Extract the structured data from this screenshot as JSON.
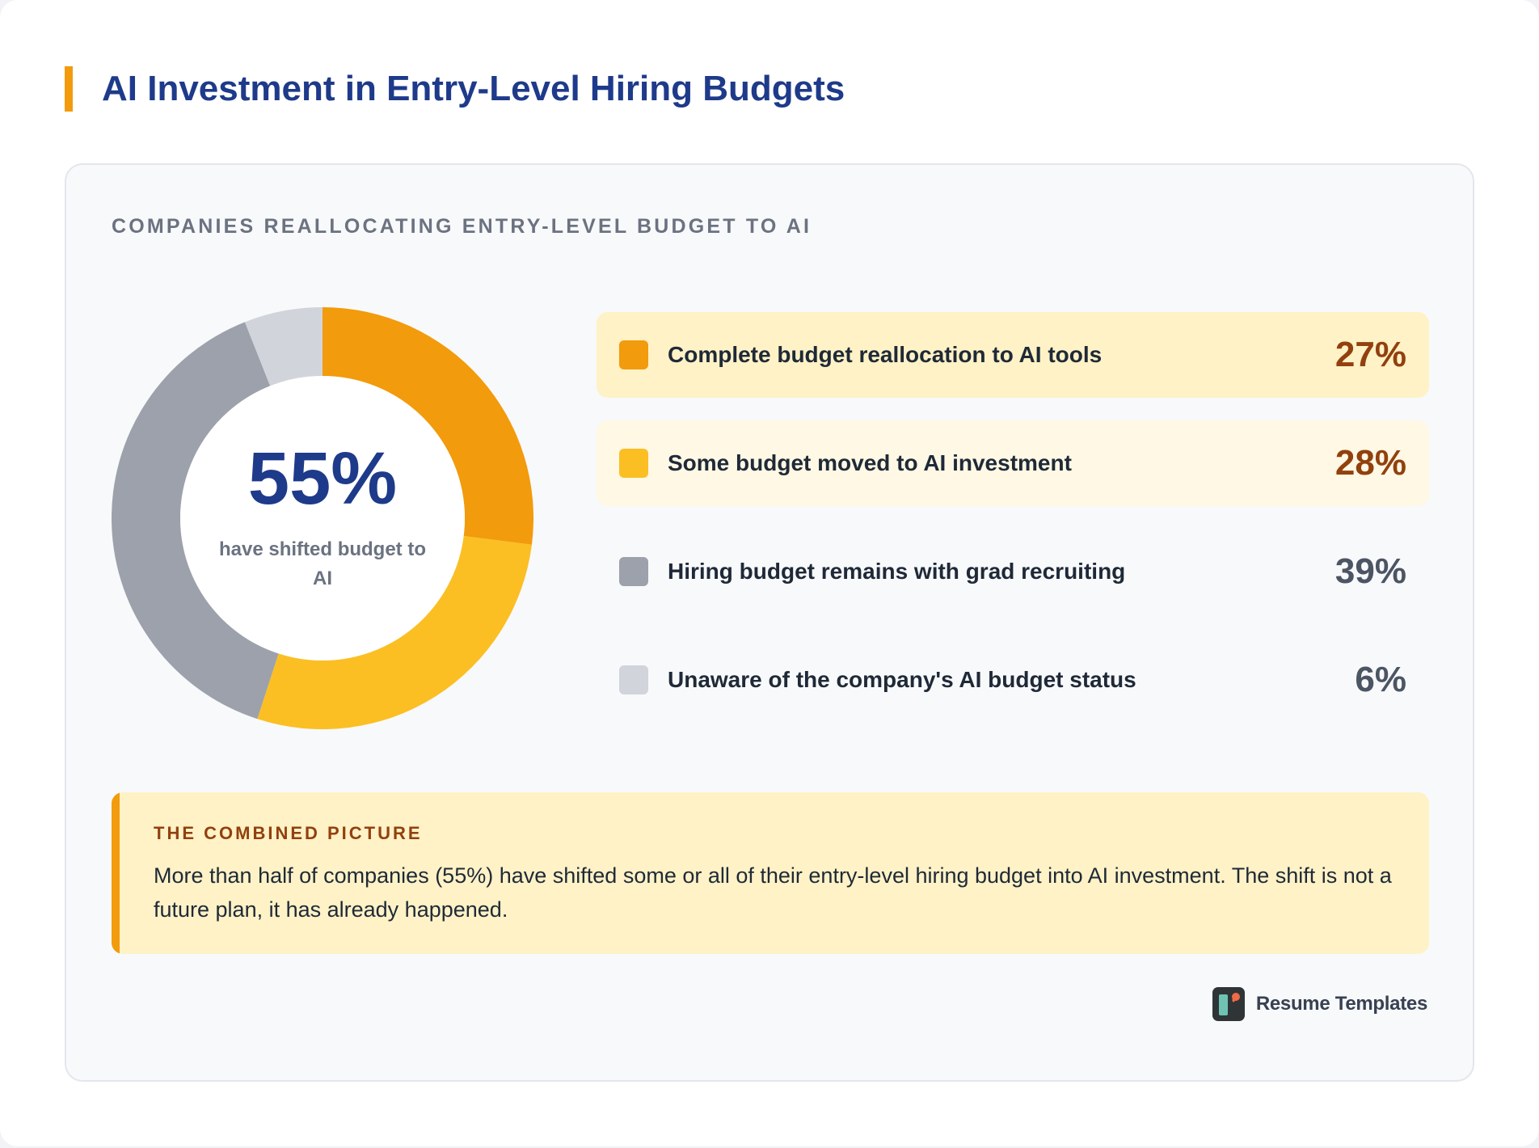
{
  "title": "AI Investment in Entry-Level Hiring Budgets",
  "section_label": "COMPANIES REALLOCATING ENTRY-LEVEL BUDGET TO AI",
  "donut": {
    "center_value": "55%",
    "center_caption": "have shifted budget to AI"
  },
  "legend": [
    {
      "label": "Complete budget reallocation to AI tools",
      "value_text": "27%",
      "color": "#f29b0c",
      "row_bg": "#fef2c6",
      "value_color": "#92400e"
    },
    {
      "label": "Some budget moved to AI investment",
      "value_text": "28%",
      "color": "#fbbf24",
      "row_bg": "#fef8e4",
      "value_color": "#92400e"
    },
    {
      "label": "Hiring budget remains with grad recruiting",
      "value_text": "39%",
      "color": "#9ca1ab",
      "row_bg": "transparent",
      "value_color": "#4b5563"
    },
    {
      "label": "Unaware of the company's AI budget status",
      "value_text": "6%",
      "color": "#d2d4db",
      "row_bg": "transparent",
      "value_color": "#4b5563"
    }
  ],
  "callout": {
    "heading": "THE COMBINED PICTURE",
    "text": "More than half of companies (55%) have shifted some or all of their entry-level hiring budget into AI investment. The shift is not a future plan, it has already happened."
  },
  "brand": {
    "name": "Resume Templates",
    "logo_icon": "resume-templates-logo-icon"
  },
  "chart_data": {
    "type": "pie",
    "title": "COMPANIES REALLOCATING ENTRY-LEVEL BUDGET TO AI",
    "donut": true,
    "categories": [
      "Complete budget reallocation to AI tools",
      "Some budget moved to AI investment",
      "Hiring budget remains with grad recruiting",
      "Unaware of the company's AI budget status"
    ],
    "values": [
      27,
      28,
      39,
      6
    ],
    "colors": [
      "#f29b0c",
      "#fbbf24",
      "#9ca1ab",
      "#d2d4db"
    ]
  }
}
